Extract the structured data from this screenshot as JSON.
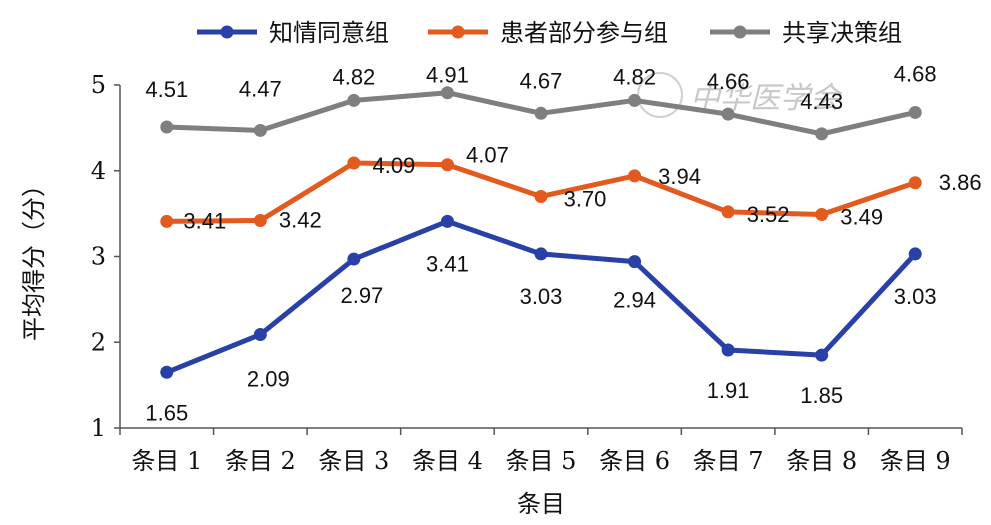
{
  "chart_data": {
    "type": "line",
    "xlabel": "条目",
    "ylabel": "平均得分（分）",
    "categories": [
      "条目 1",
      "条目 2",
      "条目 3",
      "条目 4",
      "条目 5",
      "条目 6",
      "条目 7",
      "条目 8",
      "条目 9"
    ],
    "ylim": [
      1,
      5
    ],
    "yticks": [
      "1",
      "2",
      "3",
      "4",
      "5"
    ],
    "grid": false,
    "legend_position": "top",
    "series": [
      {
        "name": "知情同意组",
        "color": "#2940a6",
        "values": [
          1.65,
          2.09,
          2.97,
          3.41,
          3.03,
          2.94,
          1.91,
          1.85,
          3.03
        ],
        "labels": [
          "1.65",
          "2.09",
          "2.97",
          "3.41",
          "3.03",
          "2.94",
          "1.91",
          "1.85",
          "3.03"
        ]
      },
      {
        "name": "患者部分参与组",
        "color": "#e35a1e",
        "values": [
          3.41,
          3.42,
          4.09,
          4.07,
          3.7,
          3.94,
          3.52,
          3.49,
          3.86
        ],
        "labels": [
          "3.41",
          "3.42",
          "4.09",
          "4.07",
          "3.70",
          "3.94",
          "3.52",
          "3.49",
          "3.86"
        ]
      },
      {
        "name": "共享决策组",
        "color": "#7f7f7f",
        "values": [
          4.51,
          4.47,
          4.82,
          4.91,
          4.67,
          4.82,
          4.66,
          4.43,
          4.68
        ],
        "labels": [
          "4.51",
          "4.47",
          "4.82",
          "4.91",
          "4.67",
          "4.82",
          "4.66",
          "4.43",
          "4.68"
        ]
      }
    ]
  },
  "watermark": "中华医学会"
}
